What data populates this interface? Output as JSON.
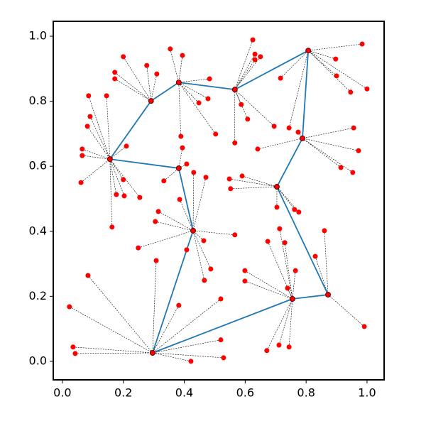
{
  "chart_data": {
    "type": "network",
    "xlim": [
      -0.03,
      1.056
    ],
    "ylim": [
      -0.057,
      1.046
    ],
    "xticks": [
      {
        "value": 0,
        "label": "0.0"
      },
      0.2,
      0.4,
      0.6,
      0.8,
      {
        "value": 1,
        "label": "1.0"
      }
    ],
    "yticks": [
      {
        "value": 0,
        "label": "0.0"
      },
      0.2,
      0.4,
      0.6,
      0.8,
      {
        "value": 1,
        "label": "1.0"
      }
    ],
    "point_color": "red",
    "edge_color": "#1f77b4",
    "link_color": "#000000",
    "hubs": {
      "x": [
        0.296,
        0.429,
        0.382,
        0.156,
        0.291,
        0.382,
        0.566,
        0.807,
        0.788,
        0.704,
        0.872,
        0.755
      ],
      "y": [
        0.026,
        0.402,
        0.594,
        0.622,
        0.801,
        0.858,
        0.836,
        0.956,
        0.686,
        0.537,
        0.205,
        0.192
      ]
    },
    "edges": [
      [
        0,
        1
      ],
      [
        0,
        11
      ],
      [
        11,
        10
      ],
      [
        10,
        9
      ],
      [
        9,
        8
      ],
      [
        8,
        7
      ],
      [
        7,
        6
      ],
      [
        6,
        5
      ],
      [
        5,
        4
      ],
      [
        4,
        3
      ],
      [
        3,
        2
      ],
      [
        2,
        1
      ]
    ],
    "points": {
      "x": [
        0.023,
        0.035,
        0.042,
        0.084,
        0.308,
        0.382,
        0.422,
        0.52,
        0.529,
        0.52,
        0.315,
        0.305,
        0.249,
        0.408,
        0.464,
        0.487,
        0.466,
        0.566,
        0.385,
        0.431,
        0.471,
        0.333,
        0.408,
        0.394,
        0.086,
        0.145,
        0.091,
        0.082,
        0.065,
        0.065,
        0.061,
        0.163,
        0.177,
        0.203,
        0.2,
        0.254,
        0.21,
        0.172,
        0.172,
        0.2,
        0.277,
        0.31,
        0.354,
        0.394,
        0.448,
        0.478,
        0.483,
        0.503,
        0.389,
        0.625,
        0.632,
        0.632,
        0.65,
        0.587,
        0.608,
        0.566,
        0.695,
        0.897,
        0.9,
        0.946,
        0.984,
        1.0,
        0.716,
        0.744,
        0.956,
        0.972,
        0.914,
        0.953,
        0.641,
        0.774,
        0.548,
        0.59,
        0.552,
        0.704,
        0.762,
        0.776,
        0.86,
        0.83,
        0.991,
        0.713,
        0.674,
        0.73,
        0.765,
        0.599,
        0.599,
        0.739,
        0.671,
        0.711,
        0.744
      ],
      "y": [
        0.168,
        0.044,
        0.024,
        0.264,
        0.31,
        0.172,
        0.0,
        0.066,
        0.011,
        0.192,
        0.461,
        0.43,
        0.349,
        0.343,
        0.371,
        0.284,
        0.249,
        0.389,
        0.498,
        0.581,
        0.566,
        0.555,
        0.607,
        0.657,
        0.817,
        0.817,
        0.753,
        0.723,
        0.653,
        0.633,
        0.55,
        0.413,
        0.513,
        0.509,
        0.559,
        0.504,
        0.662,
        0.889,
        0.869,
        0.937,
        0.91,
        0.884,
        0.961,
        0.941,
        0.795,
        0.808,
        0.869,
        0.699,
        0.692,
        0.989,
        0.945,
        0.928,
        0.937,
        0.79,
        0.745,
        0.672,
        0.723,
        0.93,
        0.878,
        0.828,
        0.976,
        0.838,
        0.871,
        0.718,
        0.718,
        0.648,
        0.596,
        0.581,
        0.653,
        0.705,
        0.561,
        0.57,
        0.531,
        0.474,
        0.467,
        0.459,
        0.402,
        0.323,
        0.107,
        0.408,
        0.369,
        0.365,
        0.279,
        0.279,
        0.247,
        0.225,
        0.033,
        0.05,
        0.044
      ],
      "hub": [
        0,
        0,
        0,
        0,
        0,
        0,
        0,
        0,
        0,
        0,
        1,
        1,
        1,
        1,
        1,
        1,
        1,
        1,
        1,
        1,
        1,
        2,
        2,
        2,
        3,
        3,
        3,
        3,
        3,
        3,
        3,
        3,
        3,
        3,
        3,
        3,
        3,
        4,
        4,
        4,
        4,
        4,
        5,
        5,
        5,
        5,
        5,
        5,
        5,
        6,
        6,
        6,
        6,
        6,
        6,
        6,
        6,
        7,
        7,
        7,
        7,
        7,
        7,
        7,
        8,
        8,
        8,
        8,
        8,
        8,
        9,
        9,
        9,
        9,
        9,
        9,
        10,
        10,
        10,
        11,
        11,
        11,
        11,
        11,
        11,
        11,
        11,
        11,
        11
      ]
    }
  }
}
